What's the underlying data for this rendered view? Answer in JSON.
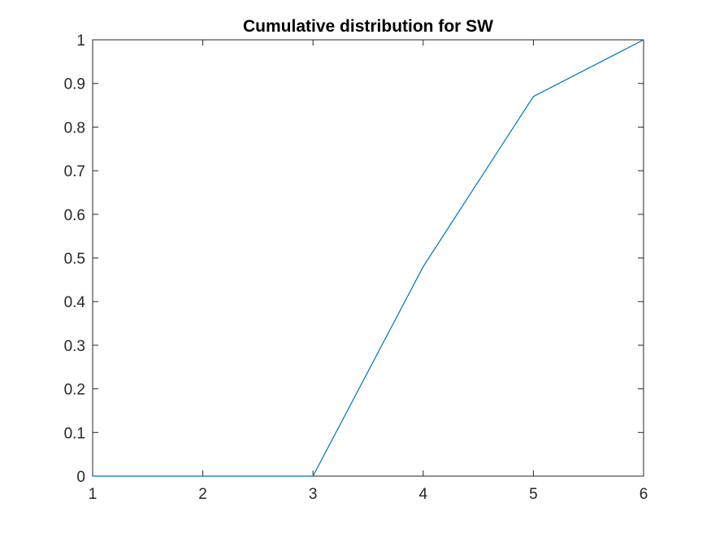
{
  "chart_data": {
    "type": "line",
    "title": "Cumulative distribution for SW",
    "xlabel": "",
    "ylabel": "",
    "xlim": [
      1,
      6
    ],
    "ylim": [
      0,
      1
    ],
    "x_ticks": [
      1,
      2,
      3,
      4,
      5,
      6
    ],
    "x_tick_labels": [
      "1",
      "2",
      "3",
      "4",
      "5",
      "6"
    ],
    "y_ticks": [
      0,
      0.1,
      0.2,
      0.3,
      0.4,
      0.5,
      0.6,
      0.7,
      0.8,
      0.9,
      1
    ],
    "y_tick_labels": [
      "0",
      "0.1",
      "0.2",
      "0.3",
      "0.4",
      "0.5",
      "0.6",
      "0.7",
      "0.8",
      "0.9",
      "1"
    ],
    "grid": false,
    "legend": false,
    "series": [
      {
        "x": [
          1,
          2,
          3,
          4,
          5,
          6
        ],
        "y": [
          0,
          0,
          0,
          0.48,
          0.87,
          1
        ],
        "color": "#0072BD"
      }
    ]
  }
}
